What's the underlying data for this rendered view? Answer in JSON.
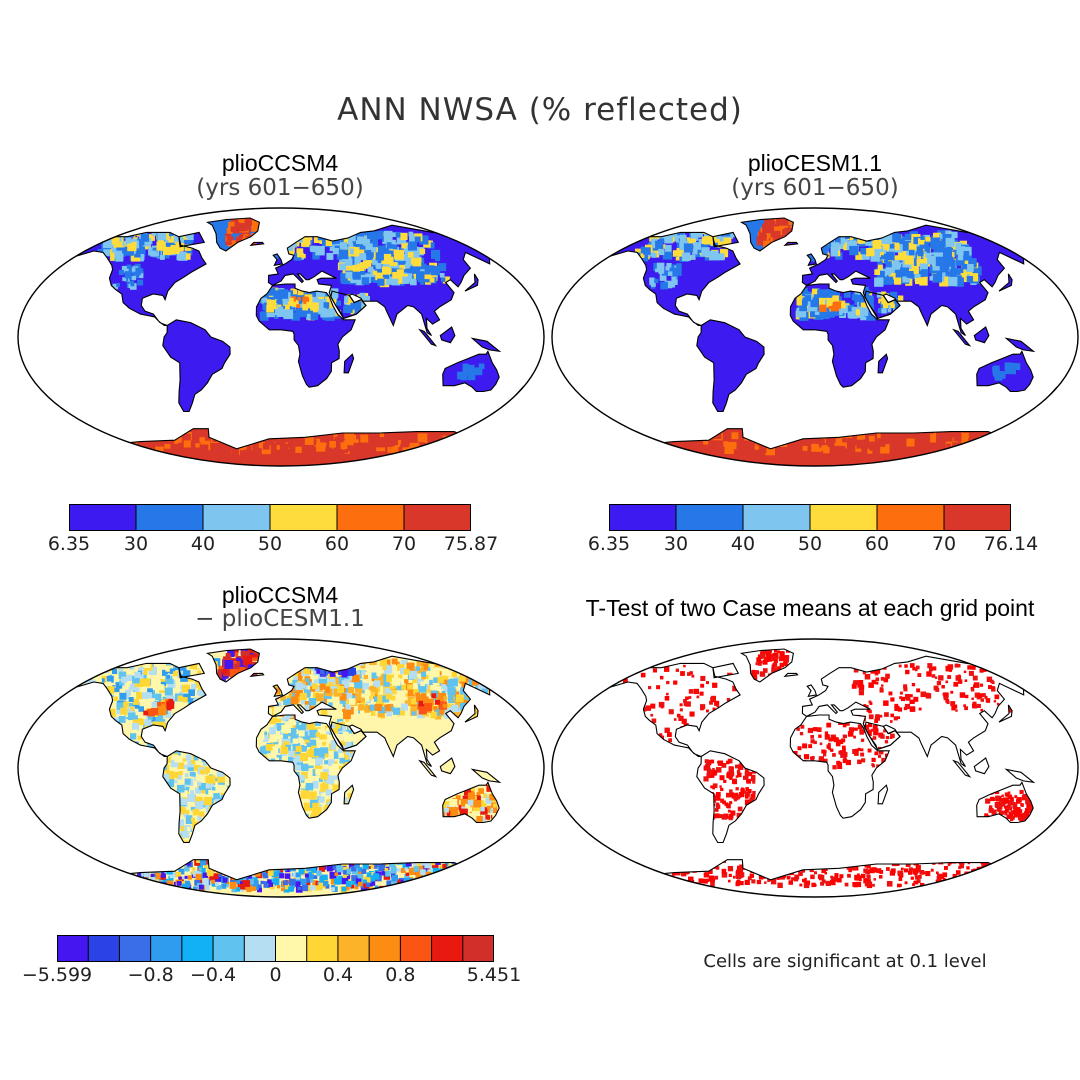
{
  "figure": {
    "title": "ANN NWSA (% reflected)",
    "note": "Cells are significant at 0.1 level"
  },
  "panels": [
    {
      "title": "plioCCSM4",
      "subtitle": "(yrs 601−650)",
      "kind": "field",
      "antarctic_color": "#d9372a"
    },
    {
      "title": "plioCESM1.1",
      "subtitle": "(yrs 601−650)",
      "kind": "field",
      "antarctic_color": "#d9372a"
    },
    {
      "title": "plioCCSM4",
      "subtitle": "− plioCESM1.1",
      "kind": "diff"
    },
    {
      "title": "T-Test of two Case means at each grid point",
      "subtitle": "",
      "kind": "ttest"
    }
  ],
  "colorbars": {
    "cb1": {
      "colors": [
        "#3d1bf0",
        "#2677e8",
        "#7ec6f0",
        "#fedc3c",
        "#fd6f0e",
        "#d9372a"
      ],
      "labels": [
        "6.35",
        "30",
        "40",
        "50",
        "60",
        "70",
        "75.87"
      ]
    },
    "cb2": {
      "colors": [
        "#3d1bf0",
        "#2677e8",
        "#7ec6f0",
        "#fedc3c",
        "#fd6f0e",
        "#d9372a"
      ],
      "labels": [
        "6.35",
        "30",
        "40",
        "50",
        "60",
        "70",
        "76.14"
      ]
    },
    "cb3": {
      "colors": [
        "#4516f0",
        "#2b43e6",
        "#3a6ee8",
        "#2f9cef",
        "#12b0f5",
        "#60c2ef",
        "#b5def2",
        "#fff8a8",
        "#fed736",
        "#fdb329",
        "#fd8c12",
        "#fb5514",
        "#e81a10",
        "#d22f2a"
      ],
      "labels": [
        "−5.599",
        "−0.8",
        "−0.4",
        "0",
        "0.4",
        "0.8",
        "5.451"
      ],
      "label_boundaries": [
        0,
        3,
        5,
        7,
        9,
        11,
        14
      ]
    }
  },
  "chart_data": {
    "type": "heatmap",
    "title": "ANN NWSA (% reflected)",
    "variable": "NWSA (annual mean, % reflected)",
    "maps": [
      {
        "name": "plioCCSM4 (yrs 601−650)",
        "min": 6.35,
        "max": 75.87,
        "levels": [
          30,
          40,
          50,
          60,
          70
        ]
      },
      {
        "name": "plioCESM1.1 (yrs 601−650)",
        "min": 6.35,
        "max": 76.14,
        "levels": [
          30,
          40,
          50,
          60,
          70
        ]
      },
      {
        "name": "plioCCSM4 − plioCESM1.1",
        "min": -5.599,
        "max": 5.451,
        "labeled_levels": [
          -0.8,
          -0.4,
          0,
          0.4,
          0.8
        ]
      },
      {
        "name": "T-Test of two Case means at each grid point",
        "significance_level": 0.1
      }
    ]
  }
}
